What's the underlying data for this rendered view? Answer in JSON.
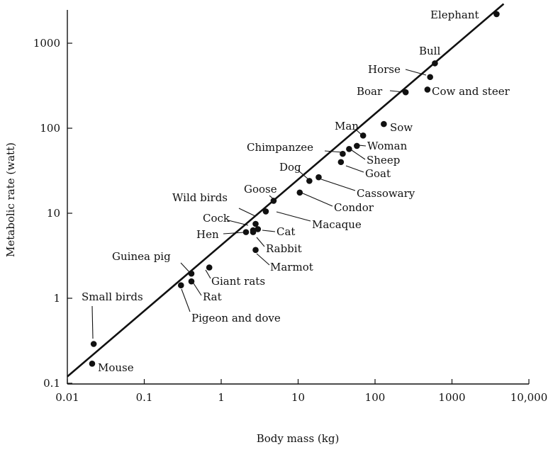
{
  "chart_data": {
    "type": "scatter",
    "title": "",
    "xlabel": "Body mass (kg)",
    "ylabel": "Metabolic rate (watt)",
    "x_scale": "log",
    "y_scale": "log",
    "xlim": [
      0.01,
      10000
    ],
    "ylim": [
      0.09,
      3000
    ],
    "x_ticks": [
      {
        "value": 0.01,
        "label": "0.01"
      },
      {
        "value": 0.1,
        "label": "0.1"
      },
      {
        "value": 1,
        "label": "1"
      },
      {
        "value": 10,
        "label": "10"
      },
      {
        "value": 100,
        "label": "100"
      },
      {
        "value": 1000,
        "label": "1000"
      },
      {
        "value": 10000,
        "label": "10,000"
      }
    ],
    "y_ticks": [
      {
        "value": 0.1,
        "label": "0.1"
      },
      {
        "value": 1,
        "label": "1"
      },
      {
        "value": 10,
        "label": "10"
      },
      {
        "value": 100,
        "label": "100"
      },
      {
        "value": 1000,
        "label": "1000"
      }
    ],
    "grid": false,
    "legend": "none",
    "fit_line": {
      "x": [
        0.01,
        4700
      ],
      "y": [
        0.12,
        2900
      ]
    },
    "points": [
      {
        "name": "Mouse",
        "x": 0.021,
        "y": 0.17
      },
      {
        "name": "Small birds",
        "x": 0.022,
        "y": 0.29
      },
      {
        "name": "Pigeon and dove",
        "x": 0.3,
        "y": 1.42
      },
      {
        "name": "Rat",
        "x": 0.41,
        "y": 1.58
      },
      {
        "name": "Guinea pig",
        "x": 0.41,
        "y": 1.95
      },
      {
        "name": "Giant rats",
        "x": 0.7,
        "y": 2.3
      },
      {
        "name": "Hen",
        "x": 2.1,
        "y": 6.0
      },
      {
        "name": "Cock",
        "x": 2.6,
        "y": 6.3
      },
      {
        "name": "Wild birds",
        "x": 2.8,
        "y": 7.5
      },
      {
        "name": "Cat",
        "x": 3.0,
        "y": 6.5
      },
      {
        "name": "Rabbit",
        "x": 2.6,
        "y": 6.0
      },
      {
        "name": "Marmot",
        "x": 2.8,
        "y": 3.7
      },
      {
        "name": "Macaque",
        "x": 3.8,
        "y": 10.5
      },
      {
        "name": "Goose",
        "x": 4.8,
        "y": 14.0
      },
      {
        "name": "Condor",
        "x": 10.5,
        "y": 17.5
      },
      {
        "name": "Dog",
        "x": 14.0,
        "y": 24.0
      },
      {
        "name": "Cassowary",
        "x": 18.5,
        "y": 26.5
      },
      {
        "name": "Goat",
        "x": 36.0,
        "y": 40.0
      },
      {
        "name": "Chimpanzee",
        "x": 38.0,
        "y": 50.0
      },
      {
        "name": "Sheep",
        "x": 46.0,
        "y": 57.0
      },
      {
        "name": "Woman",
        "x": 58.0,
        "y": 62.0
      },
      {
        "name": "Man",
        "x": 70.0,
        "y": 82.0
      },
      {
        "name": "Sow",
        "x": 130.0,
        "y": 112.0
      },
      {
        "name": "Boar",
        "x": 250.0,
        "y": 265.0
      },
      {
        "name": "Cow and steer",
        "x": 480.0,
        "y": 285.0
      },
      {
        "name": "Horse",
        "x": 520.0,
        "y": 400.0
      },
      {
        "name": "Bull",
        "x": 600.0,
        "y": 580.0
      },
      {
        "name": "Elephant",
        "x": 3800.0,
        "y": 2200.0
      }
    ]
  }
}
